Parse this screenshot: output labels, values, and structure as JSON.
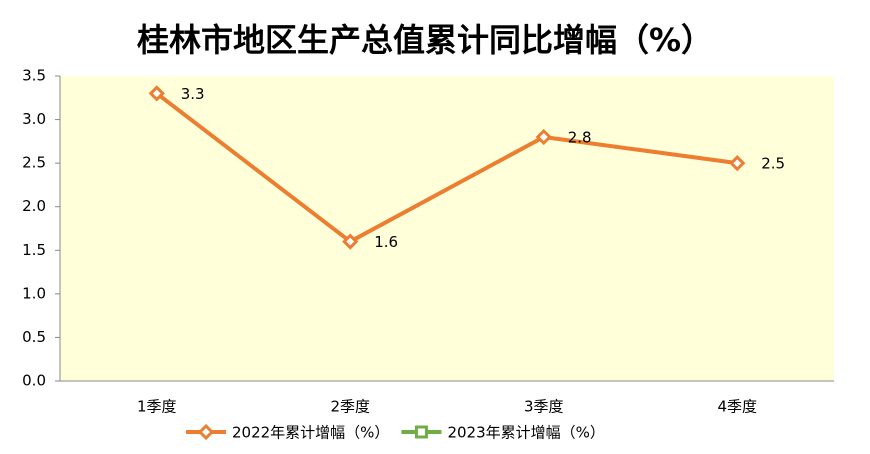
{
  "chart_data": {
    "type": "line",
    "title": "桂林市地区生产总值累计同比增幅（%）",
    "categories": [
      "1季度",
      "2季度",
      "3季度",
      "4季度"
    ],
    "series": [
      {
        "name": "2022年累计增幅（%）",
        "color": "#ed7d31",
        "marker": "diamond",
        "values": [
          3.3,
          1.6,
          2.8,
          2.5
        ]
      },
      {
        "name": "2023年累计增幅（%）",
        "color": "#70ad47",
        "marker": "square",
        "values": [
          null,
          null,
          null,
          null
        ]
      }
    ],
    "ylim": [
      0,
      3.5
    ],
    "yticks": [
      {
        "value": 0,
        "label": "0.0"
      },
      0.5,
      {
        "value": 1,
        "label": "1.0"
      },
      1.5,
      {
        "value": 2,
        "label": "2.0"
      },
      2.5,
      {
        "value": 3,
        "label": "3.0"
      },
      3.5
    ],
    "grid": false,
    "legend": "bottom",
    "plot_background": "#ffffd9"
  }
}
